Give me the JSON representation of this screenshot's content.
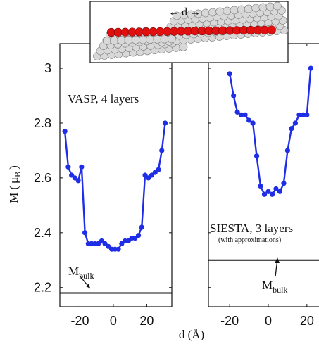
{
  "chart_data": [
    {
      "type": "line",
      "title": "VASP, 4 layers",
      "xlabel": "d (Å)",
      "ylabel": "M ( μ_B )",
      "ylabel_main": "M",
      "ylabel_mu": "μ",
      "ylabel_sub": "B",
      "ylim": [
        2.13,
        3.09
      ],
      "xlim": [
        -32,
        35
      ],
      "xticks": [
        -20,
        0,
        20
      ],
      "xtick_labels": [
        "-20",
        "0",
        "20"
      ],
      "yticks": [
        2.2,
        2.4,
        2.6,
        2.8,
        3.0
      ],
      "ytick_labels": [
        "2.2",
        "2.4",
        "2.6",
        "2.8",
        "3"
      ],
      "series": [
        {
          "color": "#1f2ee6",
          "x": [
            -29,
            -27,
            -25,
            -23,
            -21,
            -19,
            -17,
            -15,
            -13,
            -11,
            -9,
            -7,
            -5,
            -3,
            -1,
            1,
            3,
            5,
            7,
            9,
            11,
            13,
            15,
            17,
            19,
            21,
            23,
            25,
            27,
            29,
            31
          ],
          "y": [
            2.77,
            2.64,
            2.61,
            2.6,
            2.59,
            2.64,
            2.4,
            2.36,
            2.36,
            2.36,
            2.36,
            2.37,
            2.36,
            2.35,
            2.34,
            2.34,
            2.34,
            2.36,
            2.37,
            2.37,
            2.38,
            2.38,
            2.39,
            2.42,
            2.61,
            2.6,
            2.61,
            2.62,
            2.63,
            2.7,
            2.8
          ]
        }
      ],
      "reference_line": {
        "y": 2.18,
        "label_main": "M",
        "label_sub": "bulk"
      }
    },
    {
      "type": "line",
      "title": "SIESTA, 3 layers",
      "subtitle": "(with approximations)",
      "xlabel": "d (Å)",
      "ylim": [
        2.13,
        3.09
      ],
      "xlim": [
        -31,
        31
      ],
      "xticks": [
        -20,
        0,
        20
      ],
      "xtick_labels": [
        "-20",
        "0",
        "20"
      ],
      "series": [
        {
          "color": "#1f2ee6",
          "x": [
            -20,
            -18,
            -16,
            -14,
            -12,
            -10,
            -8,
            -6,
            -4,
            -2,
            0,
            2,
            4,
            6,
            8,
            10,
            12,
            14,
            16,
            18,
            20,
            22
          ],
          "y": [
            2.98,
            2.9,
            2.84,
            2.83,
            2.83,
            2.81,
            2.8,
            2.68,
            2.57,
            2.54,
            2.55,
            2.54,
            2.56,
            2.55,
            2.58,
            2.7,
            2.78,
            2.8,
            2.83,
            2.83,
            2.83,
            3.0
          ]
        }
      ],
      "reference_line": {
        "y": 2.3,
        "label_main": "M",
        "label_sub": "bulk"
      }
    }
  ],
  "inset": {
    "d_label": "d",
    "left_arrow": "←",
    "right_arrow": "→",
    "red_color": "#e01010",
    "gray_color": "#d8d8d8"
  }
}
